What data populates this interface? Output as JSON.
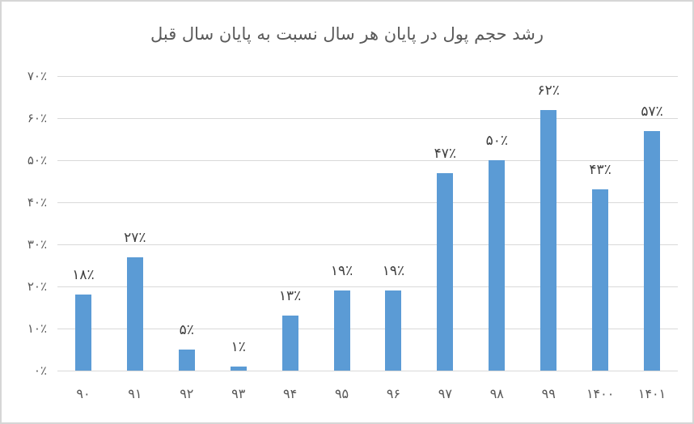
{
  "colors": {
    "bar": "#5B9BD5",
    "gridline": "#D9D9D9",
    "axis_text": "#595959",
    "data_label_text": "#3F3F3F",
    "title_text": "#595959",
    "frame_border": "#D6D6D6",
    "background": "#FFFFFF"
  },
  "chart_data": {
    "type": "bar",
    "title": "رشد حجم پول در پایان هر سال نسبت به پایان سال قبل",
    "xlabel": "",
    "ylabel": "",
    "categories": [
      "۹۰",
      "۹۱",
      "۹۲",
      "۹۳",
      "۹۴",
      "۹۵",
      "۹۶",
      "۹۷",
      "۹۸",
      "۹۹",
      "۱۴۰۰",
      "۱۴۰۱"
    ],
    "values": [
      18,
      27,
      5,
      1,
      13,
      19,
      19,
      47,
      50,
      62,
      43,
      57
    ],
    "data_labels": [
      "۱۸٪",
      "۲۷٪",
      "۵٪",
      "۱٪",
      "۱۳٪",
      "۱۹٪",
      "۱۹٪",
      "۴۷٪",
      "۵۰٪",
      "۶۲٪",
      "۴۳٪",
      "۵۷٪"
    ],
    "ylim": [
      0,
      70
    ],
    "ytick_step": 10,
    "ytick_labels": [
      "۰٪",
      "۱۰٪",
      "۲۰٪",
      "۳۰٪",
      "۴۰٪",
      "۵۰٪",
      "۶۰٪",
      "۷۰٪"
    ],
    "grid": true,
    "legend": "none"
  }
}
